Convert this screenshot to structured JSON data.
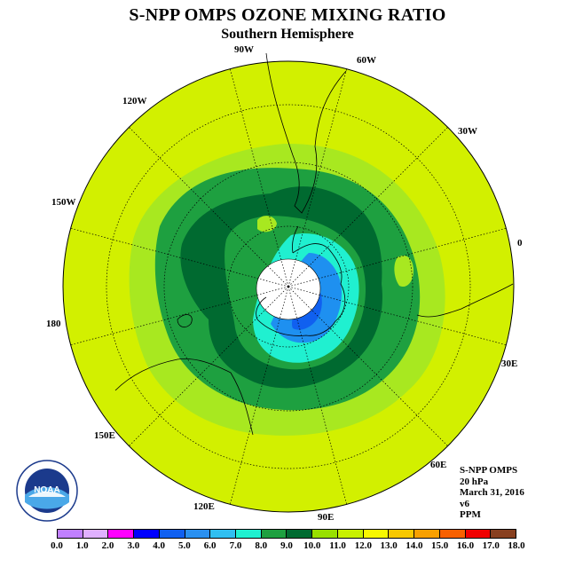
{
  "title": "S-NPP OMPS OZONE MIXING RATIO",
  "subtitle": "Southern Hemisphere",
  "longitude_labels": [
    "90W",
    "60W",
    "30W",
    "0",
    "30E",
    "60E",
    "90E",
    "120E",
    "150E",
    "180",
    "150W",
    "120W"
  ],
  "info": {
    "instrument": "S-NPP OMPS",
    "level": "20 hPa",
    "date": "March 31, 2016",
    "version": "v6",
    "units": "PPM"
  },
  "logo": {
    "text": "NOAA",
    "icon": "noaa-logo-icon"
  },
  "colorbar": {
    "ticks": [
      "0.0",
      "1.0",
      "2.0",
      "3.0",
      "4.0",
      "5.0",
      "6.0",
      "7.0",
      "8.0",
      "9.0",
      "10.0",
      "11.0",
      "12.0",
      "13.0",
      "14.0",
      "15.0",
      "16.0",
      "17.0",
      "18.0"
    ],
    "colors": [
      "#c080ff",
      "#e0b0ff",
      "#ff00ff",
      "#0000ff",
      "#1060f0",
      "#2a90f0",
      "#30bff0",
      "#20f0d0",
      "#1ea040",
      "#006a30",
      "#98e000",
      "#c8f000",
      "#f8f800",
      "#f8c800",
      "#f8a000",
      "#f86000",
      "#f00000",
      "#884020"
    ]
  },
  "map_colors": {
    "lt_green": "#a8e820",
    "yellow_green": "#d2f000",
    "green": "#1ea040",
    "dark_green": "#006a30",
    "cyan": "#20f0d0",
    "blue": "#1e90f0",
    "dark_blue": "#1060f0",
    "no_data": "#ffffff"
  }
}
